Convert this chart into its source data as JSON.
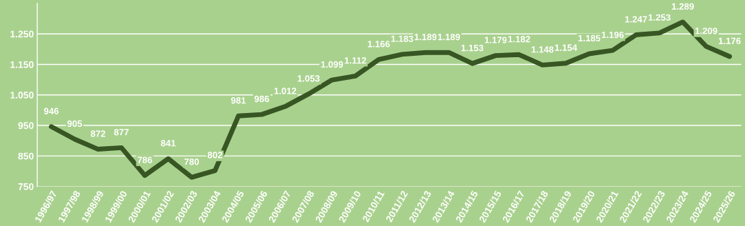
{
  "chart_data": {
    "type": "line",
    "categories": [
      "1996/97",
      "1997/98",
      "1998/99",
      "1999/00",
      "2000/01",
      "2001/02",
      "2002/03",
      "2003/04",
      "2004/05",
      "2005/06",
      "2006/07",
      "2007/08",
      "2008/09",
      "2009/10",
      "2010/11",
      "2011/12",
      "2012/13",
      "2013/14",
      "2014/15",
      "2015/15",
      "2016/17",
      "2017/18",
      "2018/19",
      "2019/20",
      "2020/21",
      "2021/22",
      "2022/23",
      "2023/24",
      "2024/25",
      "2025/26"
    ],
    "series": [
      {
        "color": "#375623",
        "values": [
          946,
          905,
          872,
          877,
          786,
          841,
          780,
          802,
          981,
          986,
          1012,
          1053,
          1099,
          1112,
          1166,
          1183,
          1189,
          1189,
          1153,
          1179,
          1182,
          1148,
          1154,
          1185,
          1196,
          1247,
          1253,
          1289,
          1209,
          1176
        ],
        "value_labels": [
          "946",
          "905",
          "872",
          "877",
          "786",
          "841",
          "780",
          "802",
          "981",
          "986",
          "1.012",
          "1.053",
          "1.099",
          "1.112",
          "1.166",
          "1.183",
          "1.189",
          "1.189",
          "1.153",
          "1.179",
          "1.182",
          "1.148",
          "1.154",
          "1.185",
          "1.196",
          "1.247",
          "1.253",
          "1.289",
          "1.209",
          "1.176"
        ]
      }
    ],
    "ylim": [
      750,
      1350
    ],
    "yticks": [
      750,
      850,
      950,
      {
        "value": 1050,
        "label": "1.050"
      },
      {
        "value": 1150,
        "label": "1.150"
      },
      {
        "value": 1250,
        "label": "1.250"
      }
    ],
    "grid": "y",
    "marker": "none",
    "line_style": "solid"
  }
}
